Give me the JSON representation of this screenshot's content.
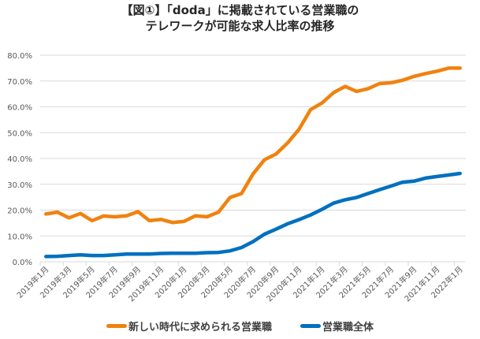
{
  "chart_data": {
    "type": "line",
    "title": "【図①】「doda」に掲載されている営業職の\nテレワークが可能な求人比率の推移",
    "title_lines": [
      "【図①】「doda」に掲載されている営業職の",
      "テレワークが可能な求人比率の推移"
    ],
    "xlabel": "",
    "ylabel": "",
    "ylim": [
      0,
      80
    ],
    "yticks": [
      "0.0%",
      "10.0%",
      "20.0%",
      "30.0%",
      "40.0%",
      "50.0%",
      "60.0%",
      "70.0%",
      "80.0%"
    ],
    "ytick_values": [
      0,
      10,
      20,
      30,
      40,
      50,
      60,
      70,
      80
    ],
    "grid": true,
    "legend_position": "bottom",
    "x": [
      "2019年1月",
      "2019年2月",
      "2019年3月",
      "2019年4月",
      "2019年5月",
      "2019年6月",
      "2019年7月",
      "2019年8月",
      "2019年9月",
      "2019年10月",
      "2019年11月",
      "2019年12月",
      "2020年1月",
      "2020年2月",
      "2020年3月",
      "2020年4月",
      "2020年5月",
      "2020年6月",
      "2020年7月",
      "2020年8月",
      "2020年9月",
      "2020年10月",
      "2020年11月",
      "2020年12月",
      "2021年1月",
      "2021年2月",
      "2021年3月",
      "2021年4月",
      "2021年5月",
      "2021年6月",
      "2021年7月",
      "2021年8月",
      "2021年9月",
      "2021年10月",
      "2021年11月",
      "2021年12月",
      "2022年1月"
    ],
    "xtick_labels": [
      "2019年1月",
      "2019年3月",
      "2019年5月",
      "2019年7月",
      "2019年9月",
      "2019年11月",
      "2020年1月",
      "2020年3月",
      "2020年5月",
      "2020年7月",
      "2020年9月",
      "2020年11月",
      "2021年1月",
      "2021年3月",
      "2021年5月",
      "2021年7月",
      "2021年9月",
      "2021年11月",
      "2022年1月"
    ],
    "series": [
      {
        "name": "新しい時代に求められる営業職",
        "color": "#F0820F",
        "values": [
          18.5,
          19.2,
          17.0,
          18.7,
          15.9,
          17.7,
          17.4,
          17.8,
          19.4,
          15.9,
          16.4,
          15.2,
          15.6,
          17.8,
          17.4,
          19.2,
          24.9,
          26.4,
          34.0,
          39.5,
          41.7,
          46.0,
          51.3,
          58.9,
          61.5,
          65.5,
          67.9,
          66.0,
          67.0,
          69.0,
          69.3,
          70.3,
          71.8,
          72.9,
          73.8,
          75.0,
          75.0
        ]
      },
      {
        "name": "営業職全体",
        "color": "#0070C0",
        "values": [
          2.0,
          2.1,
          2.4,
          2.7,
          2.4,
          2.4,
          2.7,
          3.0,
          3.0,
          3.0,
          3.2,
          3.3,
          3.3,
          3.3,
          3.5,
          3.6,
          4.2,
          5.5,
          7.8,
          10.7,
          12.6,
          14.7,
          16.3,
          18.1,
          20.3,
          22.7,
          24.0,
          24.9,
          26.4,
          27.9,
          29.3,
          30.8,
          31.2,
          32.4,
          33.0,
          33.6,
          34.2
        ]
      }
    ]
  }
}
